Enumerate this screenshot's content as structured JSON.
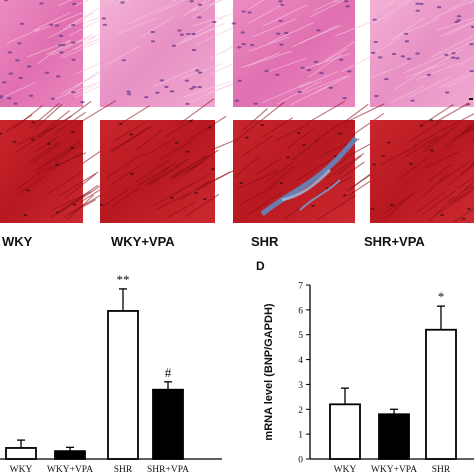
{
  "figure": {
    "panel_d_letter": "D",
    "colors": {
      "he_stain": "#e37ab4",
      "he_stain_light": "#f0a8d0",
      "masson_red": "#c42028",
      "masson_dark": "#8c0e16",
      "collagen_blue": "#5a8fc8",
      "bar_outline": "#000000",
      "bar_white": "#ffffff",
      "bar_black": "#000000"
    }
  },
  "micrographs": {
    "groups": [
      "WKY",
      "WKY+VPA",
      "SHR",
      "SHR+VPA"
    ],
    "rows": [
      "he-stain",
      "masson-trichrome"
    ],
    "fibrosis_visible_in_group": "SHR"
  },
  "chart_data": [
    {
      "type": "bar",
      "panel": "C",
      "categories": [
        "WKY",
        "WKY+VPA",
        "SHR",
        "SHR+VPA"
      ],
      "values": [
        3.5,
        2.5,
        47,
        22
      ],
      "errors": [
        2.5,
        1.2,
        7,
        2.5
      ],
      "fills": [
        "white",
        "black",
        "white",
        "black"
      ],
      "annotations": [
        "",
        "",
        "**",
        "#"
      ],
      "ylabel": "",
      "ylim": [
        0,
        60
      ],
      "grid": false,
      "yticks_visible": false
    },
    {
      "type": "bar",
      "panel": "D",
      "categories": [
        "WKY",
        "WKY+VPA",
        "SHR"
      ],
      "values": [
        2.2,
        1.8,
        5.2
      ],
      "errors": [
        0.65,
        0.2,
        0.95
      ],
      "fills": [
        "white",
        "black",
        "white"
      ],
      "annotations": [
        "",
        "",
        "*"
      ],
      "ylabel": "mRNA level (BNP/GAPDH)",
      "ylim": [
        0,
        7
      ],
      "yticks": [
        "0",
        "1",
        "2",
        "3",
        "4",
        "5",
        "6",
        "7"
      ],
      "grid": false
    }
  ]
}
